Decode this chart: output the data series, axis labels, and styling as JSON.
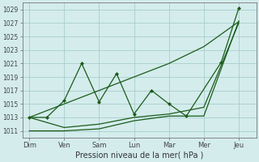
{
  "xlabel": "Pression niveau de la mer( hPa )",
  "x_labels": [
    "Dim",
    "Ven",
    "Sam",
    "Lun",
    "Mar",
    "Mer",
    "Jeu"
  ],
  "ylim": [
    1010,
    1030
  ],
  "yticks": [
    1011,
    1013,
    1015,
    1017,
    1019,
    1021,
    1023,
    1025,
    1027,
    1029
  ],
  "bg_color": "#d4ecec",
  "grid_color": "#aacccc",
  "line_color": "#1a5c1a",
  "lines": [
    {
      "y": [
        1013.0,
        1013.0,
        1015.5,
        1021.0,
        1015.3,
        1019.5,
        1013.5,
        1017.0,
        1015.0,
        1013.2,
        1021.2,
        1029.2
      ],
      "x": [
        0,
        0.5,
        1.0,
        1.5,
        2.0,
        2.5,
        3.0,
        3.5,
        4.0,
        4.5,
        5.5,
        6.0
      ],
      "marker": "D",
      "markersize": 2.0,
      "linewidth": 0.9
    },
    {
      "y": [
        1013.0,
        1015.0,
        1017.0,
        1019.0,
        1021.0,
        1023.5,
        1027.2
      ],
      "x": [
        0,
        1,
        2,
        3,
        4,
        5,
        6
      ],
      "marker": null,
      "markersize": 0,
      "linewidth": 0.9
    },
    {
      "y": [
        1011.0,
        1011.0,
        1011.3,
        1012.5,
        1013.2,
        1013.2,
        1027.3
      ],
      "x": [
        0,
        1,
        2,
        3,
        4,
        5,
        6
      ],
      "marker": null,
      "markersize": 0,
      "linewidth": 0.9
    },
    {
      "y": [
        1013.0,
        1011.5,
        1012.0,
        1013.0,
        1013.5,
        1014.5,
        1027.0
      ],
      "x": [
        0,
        1,
        2,
        3,
        4,
        5,
        6
      ],
      "marker": null,
      "markersize": 0,
      "linewidth": 0.9
    }
  ]
}
